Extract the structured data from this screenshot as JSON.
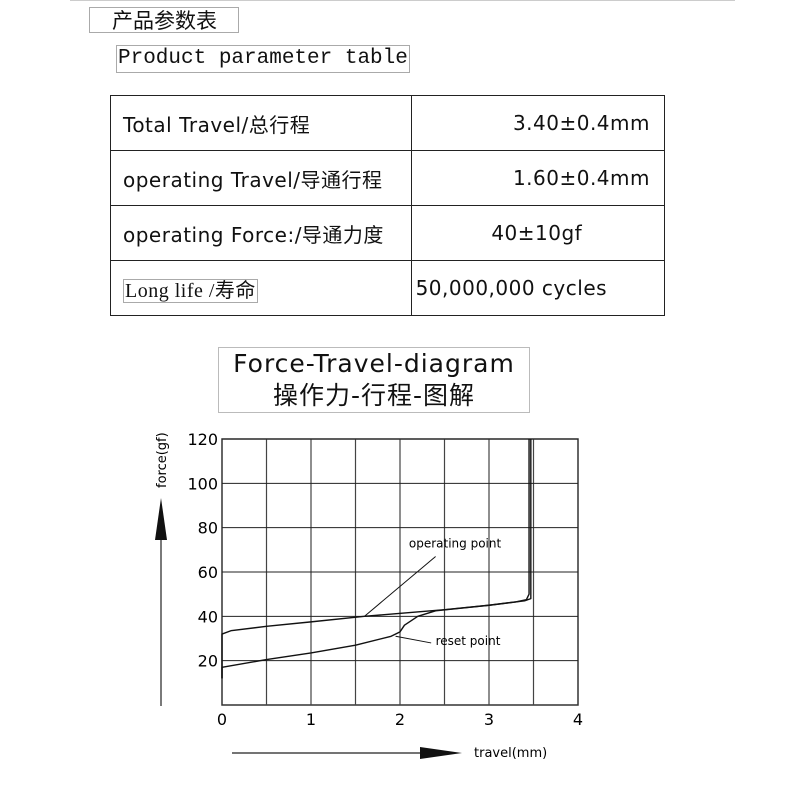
{
  "header": {
    "title_cn": "产品参数表",
    "title_en": "Product parameter table"
  },
  "table": {
    "rows": [
      {
        "label": "Total Travel/总行程",
        "value": "3.40±0.4mm"
      },
      {
        "label": "operating Travel/导通行程",
        "value": "1.60±0.4mm"
      },
      {
        "label": "operating Force:/导通力度",
        "value": "40±10gf"
      },
      {
        "label": "Long life /寿命",
        "value": "50,000,000 cycles"
      }
    ]
  },
  "chart_data": {
    "type": "line",
    "title": "Force-Travel-diagram",
    "subtitle": "操作力-行程-图解",
    "xlabel": "travel(mm)",
    "ylabel": "force(gf)",
    "xlim": [
      0,
      4
    ],
    "ylim": [
      0,
      120
    ],
    "xticks": [
      "0",
      "1",
      "2",
      "3",
      "4"
    ],
    "yticks": [
      "20",
      "40",
      "60",
      "80",
      "100",
      "120"
    ],
    "grid": true,
    "series": [
      {
        "x": [
          0,
          0,
          0.1,
          0.5,
          1.0,
          1.6,
          2.5,
          3.0,
          3.3,
          3.42,
          3.45,
          3.45
        ],
        "y": [
          12,
          32,
          33.5,
          35.5,
          37.5,
          40,
          43,
          45,
          46.5,
          47.5,
          50,
          120
        ]
      },
      {
        "x": [
          3.47,
          3.47,
          3.4,
          3.0,
          2.4,
          2.2,
          2.05,
          2.0,
          1.9,
          1.5,
          1.0,
          0.5,
          0,
          0
        ],
        "y": [
          120,
          48,
          47,
          45,
          42.5,
          40,
          36,
          33,
          31,
          27,
          23.5,
          20.5,
          17,
          12
        ]
      }
    ],
    "annotations": [
      {
        "text": "operating point",
        "x": 1.6,
        "y": 40
      },
      {
        "text": "reset point",
        "x": 1.95,
        "y": 31
      }
    ]
  }
}
